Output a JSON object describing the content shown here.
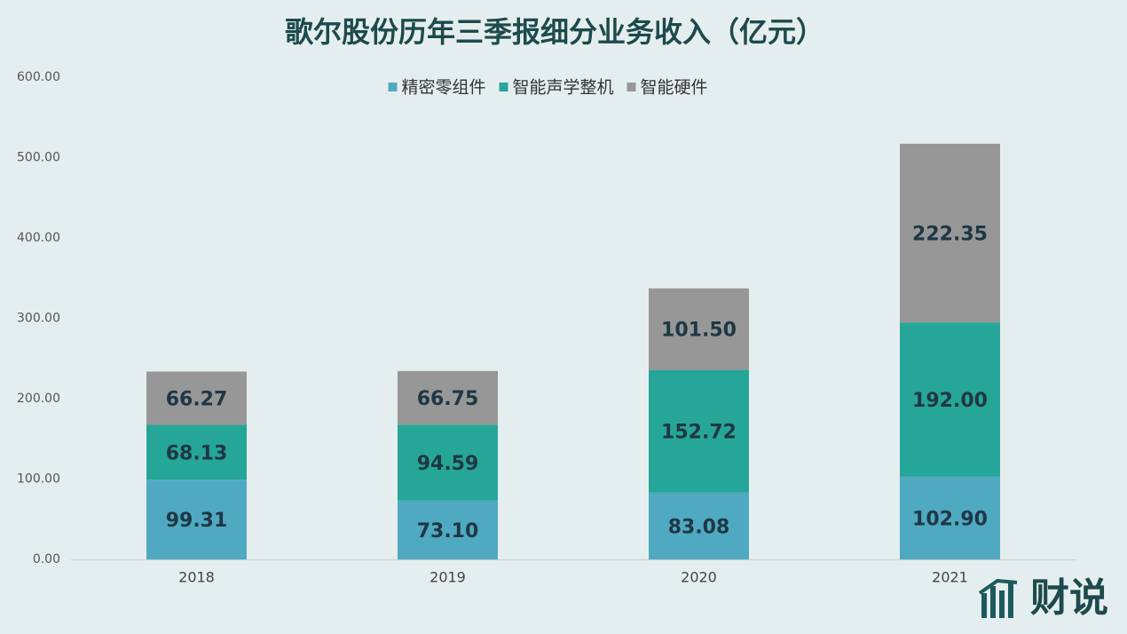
{
  "chart_data": {
    "type": "stacked_bar",
    "title": "歌尔股份历年三季报细分业务收入（亿元）",
    "categories": [
      "2018",
      "2019",
      "2020",
      "2021"
    ],
    "series": [
      {
        "name": "精密零组件",
        "color": "#4fa9c1",
        "values": [
          99.31,
          73.1,
          83.08,
          102.9
        ],
        "value_labels": [
          "99.31",
          "73.10",
          "83.08",
          "102.90"
        ]
      },
      {
        "name": "智能声学整机",
        "color": "#26a698",
        "values": [
          68.13,
          94.59,
          152.72,
          192
        ],
        "value_labels": [
          "68.13",
          "94.59",
          "152.72",
          "192.00"
        ]
      },
      {
        "name": "智能硬件",
        "color": "#979797",
        "values": [
          66.27,
          66.75,
          101.5,
          222.35
        ],
        "value_labels": [
          "66.27",
          "66.75",
          "101.50",
          "222.35"
        ]
      }
    ],
    "ylim": [
      0,
      600
    ],
    "yticks": [
      {
        "value": 0,
        "label": "0.00"
      },
      {
        "value": 100,
        "label": "100.00"
      },
      {
        "value": 200,
        "label": "200.00"
      },
      {
        "value": 300,
        "label": "300.00"
      },
      {
        "value": 400,
        "label": "400.00"
      },
      {
        "value": 500,
        "label": "500.00"
      },
      {
        "value": 600,
        "label": "600.00"
      }
    ],
    "legend": "top",
    "watermark": "财说"
  }
}
